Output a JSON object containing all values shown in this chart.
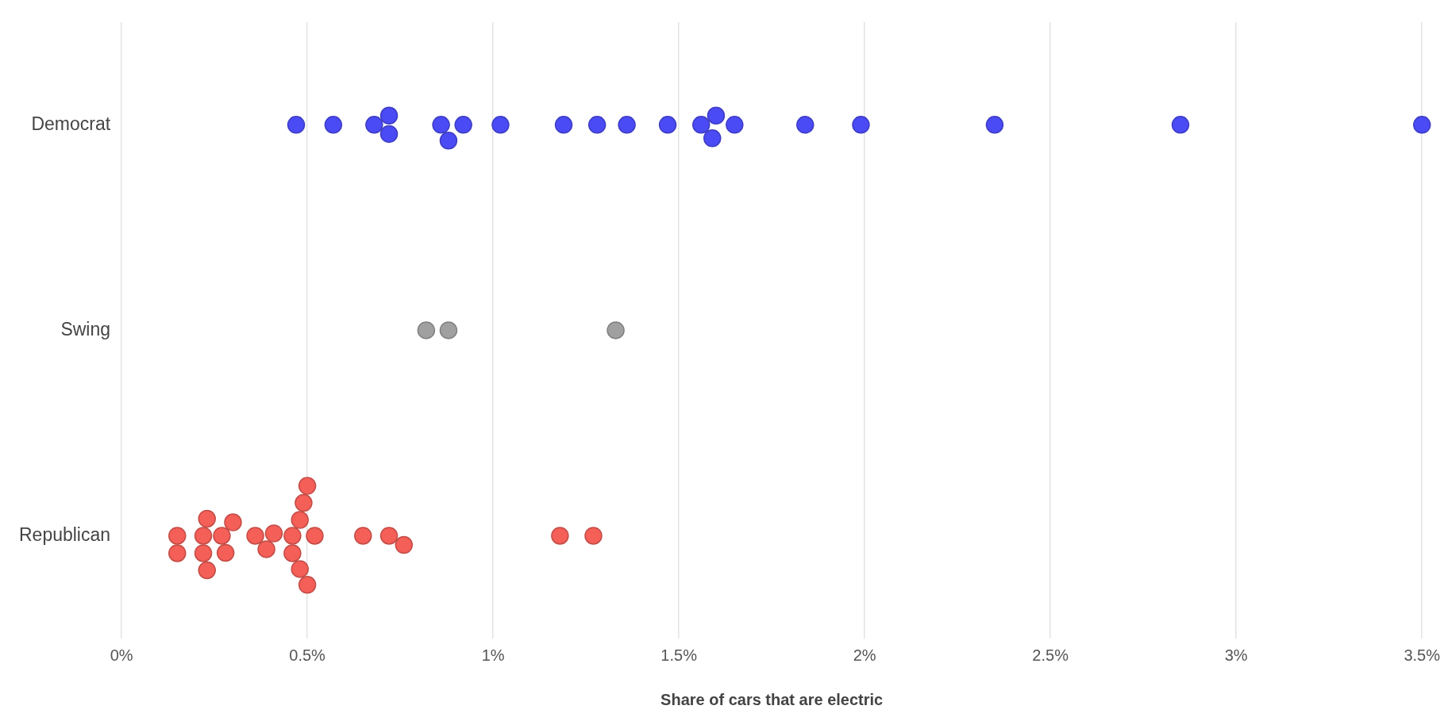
{
  "chart_data": {
    "type": "scatter",
    "orientation": "horizontal",
    "xlabel": "Share of cars that are electric",
    "categories": [
      "Democrat",
      "Swing",
      "Republican"
    ],
    "xlim": [
      0,
      3.5
    ],
    "xticks": [
      {
        "value": 0,
        "label": "0%"
      },
      {
        "value": 0.5,
        "label": "0.5%"
      },
      {
        "value": 1,
        "label": "1%"
      },
      {
        "value": 1.5,
        "label": "1.5%"
      },
      {
        "value": 2,
        "label": "2%"
      },
      {
        "value": 2.5,
        "label": "2.5%"
      },
      {
        "value": 3,
        "label": "3%"
      },
      {
        "value": 3.5,
        "label": "3.5%"
      }
    ],
    "grid": "x",
    "legend": false,
    "marker": "circle",
    "series": [
      {
        "color": "#4b4bf5",
        "values": [
          0.47,
          0.57,
          0.68,
          0.72,
          0.72,
          0.86,
          0.88,
          0.92,
          1.02,
          1.19,
          1.28,
          1.36,
          1.47,
          1.56,
          1.59,
          1.6,
          1.65,
          1.84,
          1.99,
          2.35,
          2.85,
          3.5
        ],
        "x": [
          "Democrat",
          "Democrat",
          "Democrat",
          "Democrat",
          "Democrat",
          "Democrat",
          "Democrat",
          "Democrat",
          "Democrat",
          "Democrat",
          "Democrat",
          "Democrat",
          "Democrat",
          "Democrat",
          "Democrat",
          "Democrat",
          "Democrat",
          "Democrat",
          "Democrat",
          "Democrat",
          "Democrat",
          "Democrat"
        ]
      },
      {
        "color": "#a0a0a0",
        "values": [
          0.82,
          0.88,
          1.33
        ],
        "x": [
          "Swing",
          "Swing",
          "Swing"
        ]
      },
      {
        "color": "#f45f58",
        "values": [
          0.15,
          0.15,
          0.22,
          0.22,
          0.23,
          0.23,
          0.27,
          0.28,
          0.3,
          0.36,
          0.39,
          0.41,
          0.46,
          0.46,
          0.48,
          0.48,
          0.49,
          0.5,
          0.5,
          0.52,
          0.65,
          0.72,
          0.76,
          1.18,
          1.27
        ],
        "x": [
          "Republican",
          "Republican",
          "Republican",
          "Republican",
          "Republican",
          "Republican",
          "Republican",
          "Republican",
          "Republican",
          "Republican",
          "Republican",
          "Republican",
          "Republican",
          "Republican",
          "Republican",
          "Republican",
          "Republican",
          "Republican",
          "Republican",
          "Republican",
          "Republican",
          "Republican",
          "Republican",
          "Republican",
          "Republican"
        ]
      }
    ]
  }
}
